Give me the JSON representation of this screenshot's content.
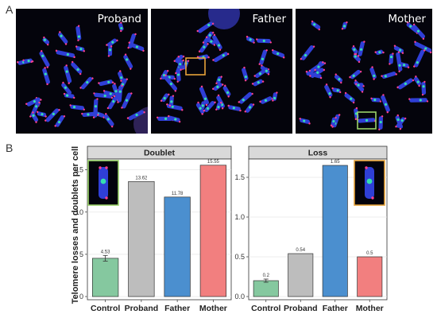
{
  "panel_a": {
    "letter": "A",
    "images": [
      {
        "title": "Proband",
        "highlight": "none"
      },
      {
        "title": "Father",
        "highlight": "#e8a33a"
      },
      {
        "title": "Mother",
        "highlight": "#9bd36a"
      }
    ]
  },
  "panel_b": {
    "letter": "B"
  },
  "chart_data": [
    {
      "type": "bar",
      "title": "Doublet",
      "ylabel": "Telomere losses and doublets per cell",
      "categories": [
        "Control",
        "Proband",
        "Father",
        "Mother"
      ],
      "values": [
        4.53,
        13.62,
        11.78,
        15.55
      ],
      "value_labels": [
        "4.53",
        "13.62",
        "11.78",
        "15.55"
      ],
      "error_bar": {
        "category": "Control",
        "low": 4.2,
        "high": 4.86
      },
      "colors": [
        "#85c89f",
        "#bdbdbd",
        "#4b8fcf",
        "#f27f7f"
      ],
      "ylim": [
        0,
        16
      ],
      "yticks": [
        0,
        5,
        10,
        15
      ],
      "ytick_labels": [
        "0",
        "5",
        "10",
        "15"
      ],
      "inset": {
        "position": "top-left",
        "border": "#9bd36a"
      },
      "grid": true
    },
    {
      "type": "bar",
      "title": "Loss",
      "categories": [
        "Control",
        "Proband",
        "Father",
        "Mother"
      ],
      "values": [
        0.2,
        0.54,
        1.65,
        0.5
      ],
      "value_labels": [
        "0.2",
        "0.54",
        "1.65",
        "0.5"
      ],
      "error_bar": {
        "category": "Control",
        "low": 0.18,
        "high": 0.22
      },
      "colors": [
        "#85c89f",
        "#bdbdbd",
        "#4b8fcf",
        "#f27f7f"
      ],
      "ylim": [
        0,
        1.7
      ],
      "yticks": [
        0,
        0.5,
        1.0,
        1.5
      ],
      "ytick_labels": [
        "0.0",
        "0.5",
        "1.0",
        "1.5"
      ],
      "inset": {
        "position": "top-right",
        "border": "#e8a33a"
      },
      "grid": true
    }
  ]
}
